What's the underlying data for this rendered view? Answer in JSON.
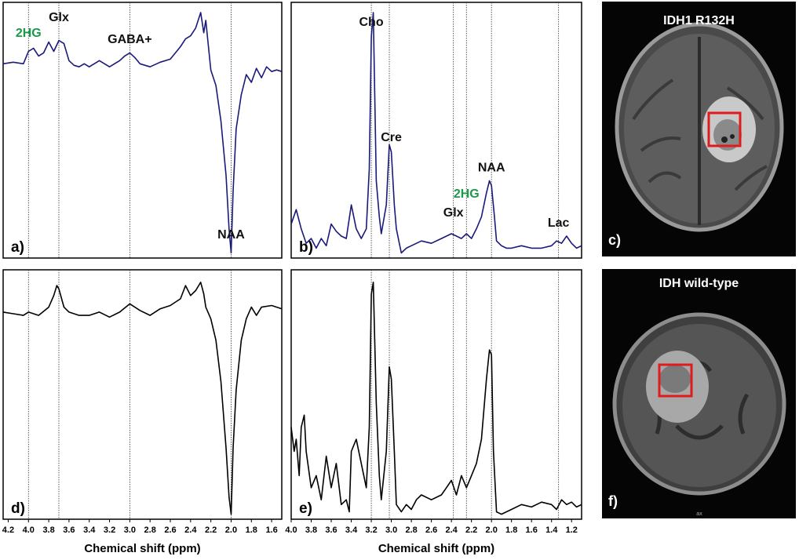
{
  "figure": {
    "colors": {
      "spectrum_blue": "#1a1a7a",
      "spectrum_black": "#000000",
      "label_green": "#1a9a4a",
      "roi_red": "#e01b1b"
    },
    "x_axis_title": "Chemical shift (ppm)"
  },
  "chart_data": [
    {
      "panel": "a)",
      "type": "line",
      "xlim": [
        4.25,
        1.5
      ],
      "x_inverted": true,
      "grid": false,
      "series": [
        {
          "color": "#1a1a7a",
          "x": [
            4.25,
            4.15,
            4.05,
            4.0,
            3.95,
            3.9,
            3.85,
            3.8,
            3.75,
            3.7,
            3.65,
            3.6,
            3.55,
            3.5,
            3.45,
            3.4,
            3.3,
            3.2,
            3.1,
            3.05,
            3.0,
            2.95,
            2.9,
            2.8,
            2.7,
            2.6,
            2.5,
            2.45,
            2.4,
            2.35,
            2.3,
            2.27,
            2.25,
            2.2,
            2.15,
            2.1,
            2.05,
            2.02,
            2.0,
            1.98,
            1.95,
            1.9,
            1.85,
            1.8,
            1.75,
            1.7,
            1.65,
            1.6,
            1.55,
            1.5
          ],
          "y": [
            0.22,
            0.23,
            0.22,
            0.3,
            0.32,
            0.27,
            0.29,
            0.36,
            0.3,
            0.37,
            0.35,
            0.24,
            0.21,
            0.2,
            0.22,
            0.2,
            0.24,
            0.2,
            0.24,
            0.27,
            0.29,
            0.26,
            0.22,
            0.2,
            0.23,
            0.25,
            0.33,
            0.38,
            0.4,
            0.45,
            0.55,
            0.42,
            0.5,
            0.18,
            0.08,
            -0.15,
            -0.5,
            -0.85,
            -1.0,
            -0.6,
            -0.2,
            0.02,
            0.15,
            0.1,
            0.19,
            0.13,
            0.2,
            0.17,
            0.18,
            0.17
          ]
        }
      ],
      "annotations": [
        {
          "text": "2HG",
          "x": 4.0,
          "color": "#1a9a4a"
        },
        {
          "text": "Glx",
          "x": 3.7,
          "color": "#111111"
        },
        {
          "text": "GABA+",
          "x": 3.0,
          "color": "#111111"
        },
        {
          "text": "NAA",
          "x": 2.0,
          "color": "#111111"
        }
      ],
      "guides_ppm": [
        4.0,
        3.7,
        3.0,
        2.0
      ]
    },
    {
      "panel": "b)",
      "type": "line",
      "xlim": [
        4.0,
        1.1
      ],
      "x_inverted": true,
      "grid": false,
      "series": [
        {
          "color": "#1a1a7a",
          "x": [
            4.0,
            3.95,
            3.9,
            3.85,
            3.8,
            3.75,
            3.7,
            3.65,
            3.6,
            3.55,
            3.5,
            3.45,
            3.4,
            3.35,
            3.3,
            3.25,
            3.22,
            3.2,
            3.18,
            3.15,
            3.12,
            3.1,
            3.05,
            3.02,
            3.0,
            2.97,
            2.95,
            2.9,
            2.85,
            2.8,
            2.7,
            2.6,
            2.5,
            2.4,
            2.35,
            2.3,
            2.25,
            2.2,
            2.15,
            2.1,
            2.05,
            2.02,
            2.0,
            1.97,
            1.95,
            1.9,
            1.85,
            1.8,
            1.7,
            1.6,
            1.5,
            1.4,
            1.35,
            1.3,
            1.25,
            1.2,
            1.15,
            1.1
          ],
          "y": [
            0.12,
            0.18,
            0.1,
            0.04,
            0.06,
            0.02,
            0.06,
            0.03,
            0.12,
            0.09,
            0.07,
            0.06,
            0.2,
            0.1,
            0.06,
            0.1,
            0.35,
            0.9,
            1.0,
            0.3,
            0.15,
            0.08,
            0.2,
            0.45,
            0.42,
            0.2,
            0.1,
            0.0,
            0.02,
            0.03,
            0.05,
            0.04,
            0.06,
            0.08,
            0.07,
            0.06,
            0.08,
            0.06,
            0.1,
            0.15,
            0.25,
            0.3,
            0.28,
            0.15,
            0.05,
            0.03,
            0.02,
            0.02,
            0.03,
            0.02,
            0.02,
            0.03,
            0.05,
            0.04,
            0.07,
            0.04,
            0.02,
            0.03
          ]
        }
      ],
      "annotations": [
        {
          "text": "Cho",
          "x": 3.2,
          "color": "#111111"
        },
        {
          "text": "Cre",
          "x": 3.0,
          "color": "#111111"
        },
        {
          "text": "Glx",
          "x": 2.38,
          "color": "#111111"
        },
        {
          "text": "2HG",
          "x": 2.25,
          "color": "#1a9a4a"
        },
        {
          "text": "NAA",
          "x": 2.0,
          "color": "#111111"
        },
        {
          "text": "Lac",
          "x": 1.33,
          "color": "#111111"
        }
      ],
      "guides_ppm": [
        3.2,
        3.02,
        2.38,
        2.25,
        2.0,
        1.33
      ]
    },
    {
      "panel": "d)",
      "type": "line",
      "xlim": [
        4.25,
        1.5
      ],
      "x_inverted": true,
      "grid": false,
      "xticks": [
        "4.2",
        "4.0",
        "3.8",
        "3.6",
        "3.4",
        "3.2",
        "3.0",
        "2.8",
        "2.6",
        "2.4",
        "2.2",
        "2.0",
        "1.8",
        "1.6"
      ],
      "series": [
        {
          "color": "#000000",
          "x": [
            4.25,
            4.15,
            4.05,
            4.0,
            3.9,
            3.8,
            3.75,
            3.72,
            3.7,
            3.65,
            3.6,
            3.5,
            3.4,
            3.3,
            3.2,
            3.1,
            3.0,
            2.9,
            2.8,
            2.7,
            2.6,
            2.5,
            2.45,
            2.4,
            2.35,
            2.3,
            2.27,
            2.25,
            2.2,
            2.15,
            2.1,
            2.05,
            2.02,
            2.0,
            1.98,
            1.95,
            1.9,
            1.85,
            1.8,
            1.75,
            1.7,
            1.6,
            1.5
          ],
          "y": [
            0.22,
            0.21,
            0.2,
            0.22,
            0.2,
            0.25,
            0.32,
            0.38,
            0.36,
            0.25,
            0.22,
            0.2,
            0.2,
            0.22,
            0.19,
            0.22,
            0.27,
            0.23,
            0.2,
            0.24,
            0.26,
            0.3,
            0.38,
            0.32,
            0.35,
            0.4,
            0.33,
            0.25,
            0.18,
            0.05,
            -0.2,
            -0.6,
            -0.9,
            -1.0,
            -0.6,
            -0.25,
            0.05,
            0.18,
            0.25,
            0.2,
            0.25,
            0.26,
            0.24
          ]
        }
      ],
      "guides_ppm": [
        4.0,
        3.7,
        3.0,
        2.0
      ]
    },
    {
      "panel": "e)",
      "type": "line",
      "xlim": [
        4.0,
        1.1
      ],
      "x_inverted": true,
      "grid": false,
      "xticks": [
        "4.0",
        "3.8",
        "3.6",
        "3.4",
        "3.2",
        "3.0",
        "2.8",
        "2.6",
        "2.4",
        "2.2",
        "2.0",
        "1.8",
        "1.6",
        "1.4",
        "1.2"
      ],
      "series": [
        {
          "color": "#000000",
          "x": [
            4.0,
            3.97,
            3.95,
            3.92,
            3.9,
            3.87,
            3.85,
            3.8,
            3.75,
            3.7,
            3.65,
            3.6,
            3.55,
            3.5,
            3.45,
            3.42,
            3.4,
            3.35,
            3.3,
            3.25,
            3.22,
            3.2,
            3.18,
            3.15,
            3.12,
            3.1,
            3.05,
            3.02,
            3.0,
            2.97,
            2.95,
            2.9,
            2.85,
            2.8,
            2.75,
            2.7,
            2.6,
            2.5,
            2.45,
            2.4,
            2.35,
            2.3,
            2.25,
            2.2,
            2.15,
            2.1,
            2.05,
            2.02,
            2.0,
            1.98,
            1.95,
            1.9,
            1.8,
            1.7,
            1.6,
            1.5,
            1.4,
            1.35,
            1.3,
            1.25,
            1.2,
            1.15,
            1.1
          ],
          "y": [
            0.4,
            0.3,
            0.35,
            0.2,
            0.4,
            0.45,
            0.3,
            0.15,
            0.2,
            0.1,
            0.28,
            0.15,
            0.25,
            0.08,
            0.1,
            0.05,
            0.3,
            0.35,
            0.25,
            0.15,
            0.4,
            0.95,
            1.0,
            0.5,
            0.2,
            0.1,
            0.3,
            0.65,
            0.6,
            0.3,
            0.08,
            0.05,
            0.08,
            0.06,
            0.1,
            0.12,
            0.1,
            0.12,
            0.15,
            0.18,
            0.12,
            0.2,
            0.15,
            0.2,
            0.25,
            0.35,
            0.6,
            0.72,
            0.7,
            0.3,
            0.05,
            0.04,
            0.06,
            0.08,
            0.07,
            0.09,
            0.08,
            0.06,
            0.1,
            0.08,
            0.09,
            0.07,
            0.08
          ]
        }
      ],
      "guides_ppm": [
        3.2,
        3.02,
        2.38,
        2.25,
        2.0,
        1.33
      ]
    }
  ],
  "panels": {
    "a": {
      "letter": "a)"
    },
    "b": {
      "letter": "b)"
    },
    "c": {
      "letter": "c)",
      "title": "IDH1 R132H"
    },
    "d": {
      "letter": "d)"
    },
    "e": {
      "letter": "e)"
    },
    "f": {
      "letter": "f)",
      "title": "IDH wild-type",
      "scan_tag": "ax"
    }
  }
}
